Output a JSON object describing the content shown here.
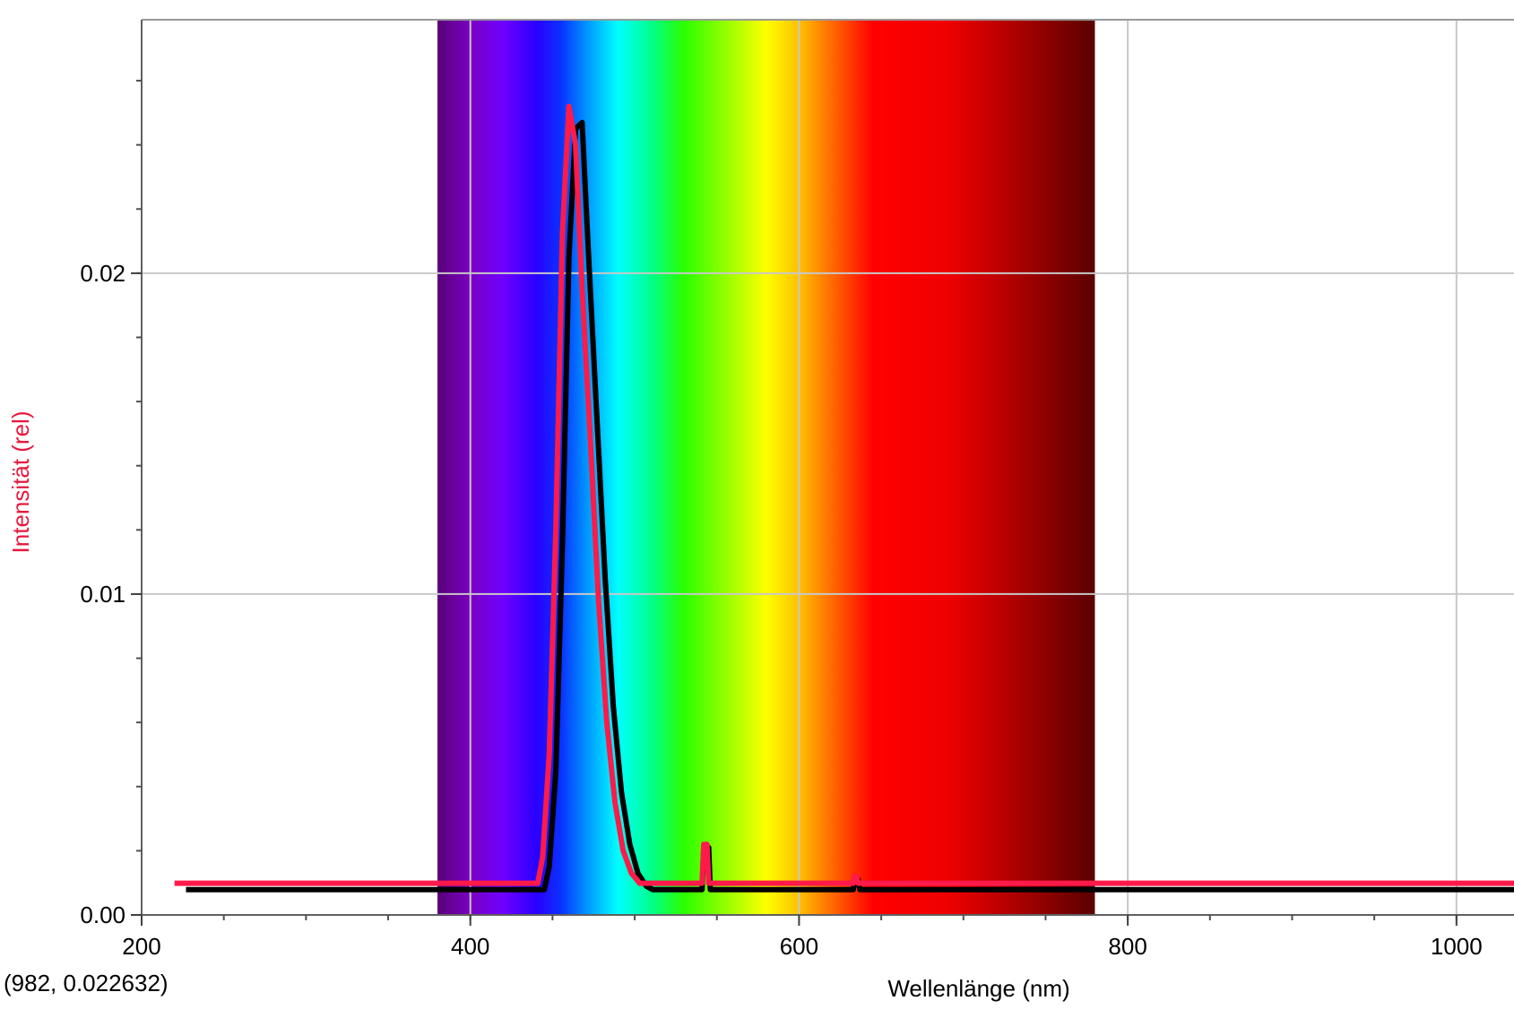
{
  "cursor_readout": "(982, 0.022632)",
  "chart_data": {
    "type": "line",
    "title": "",
    "xlabel": "Wellenlänge (nm)",
    "ylabel": "Intensität (rel)",
    "xlim": [
      200,
      1035
    ],
    "ylim": [
      0,
      0.0279
    ],
    "x_ticks": [
      200,
      400,
      600,
      800,
      1000
    ],
    "y_ticks": [
      0.0,
      0.01,
      0.02
    ],
    "x_tick_labels": [
      "200",
      "400",
      "600",
      "800",
      "1000"
    ],
    "y_tick_labels": [
      "0.00",
      "0.01",
      "0.02"
    ],
    "x_minor_step": 50,
    "y_minor_step": 0.002,
    "grid": true,
    "spectrum_band": [
      380,
      780
    ],
    "spectrum_stops": [
      {
        "nm": 380,
        "color": "#5a007a"
      },
      {
        "nm": 400,
        "color": "#7a00c0"
      },
      {
        "nm": 420,
        "color": "#7000ff"
      },
      {
        "nm": 440,
        "color": "#2a00ff"
      },
      {
        "nm": 455,
        "color": "#0a30ff"
      },
      {
        "nm": 470,
        "color": "#0090ff"
      },
      {
        "nm": 490,
        "color": "#00ffff"
      },
      {
        "nm": 510,
        "color": "#00ff8c"
      },
      {
        "nm": 530,
        "color": "#2aff00"
      },
      {
        "nm": 560,
        "color": "#a8ff00"
      },
      {
        "nm": 580,
        "color": "#ffff00"
      },
      {
        "nm": 600,
        "color": "#ffc000"
      },
      {
        "nm": 620,
        "color": "#ff6a00"
      },
      {
        "nm": 645,
        "color": "#ff0000"
      },
      {
        "nm": 690,
        "color": "#f00000"
      },
      {
        "nm": 730,
        "color": "#b00000"
      },
      {
        "nm": 780,
        "color": "#5a0000"
      }
    ],
    "series": [
      {
        "color": "#000000",
        "x": [
          227,
          445,
          448,
          452,
          456,
          460,
          464,
          468,
          472,
          477,
          482,
          487,
          492,
          497,
          502,
          507,
          511,
          541,
          542,
          545,
          546,
          633,
          634,
          636,
          637,
          1035
        ],
        "y": [
          0.00079,
          0.00079,
          0.0015,
          0.0045,
          0.0115,
          0.0205,
          0.0245,
          0.0247,
          0.0205,
          0.0155,
          0.0105,
          0.0065,
          0.0038,
          0.0022,
          0.0013,
          0.0009,
          0.00079,
          0.00079,
          0.0021,
          0.0021,
          0.00079,
          0.00079,
          0.0011,
          0.0011,
          0.00079,
          0.00079
        ]
      },
      {
        "color": "#ff1a4a",
        "x": [
          220,
          441,
          444,
          448,
          452,
          456,
          460,
          464,
          468,
          473,
          478,
          483,
          488,
          493,
          498,
          503,
          508,
          541,
          542,
          544,
          545,
          633,
          634,
          635,
          636,
          1035
        ],
        "y": [
          0.00099,
          0.00099,
          0.0018,
          0.005,
          0.012,
          0.0212,
          0.0252,
          0.024,
          0.0195,
          0.0148,
          0.0098,
          0.006,
          0.0035,
          0.002,
          0.0013,
          0.00099,
          0.00099,
          0.00099,
          0.0022,
          0.0022,
          0.00099,
          0.00099,
          0.0012,
          0.0012,
          0.00099,
          0.00099
        ]
      }
    ]
  }
}
